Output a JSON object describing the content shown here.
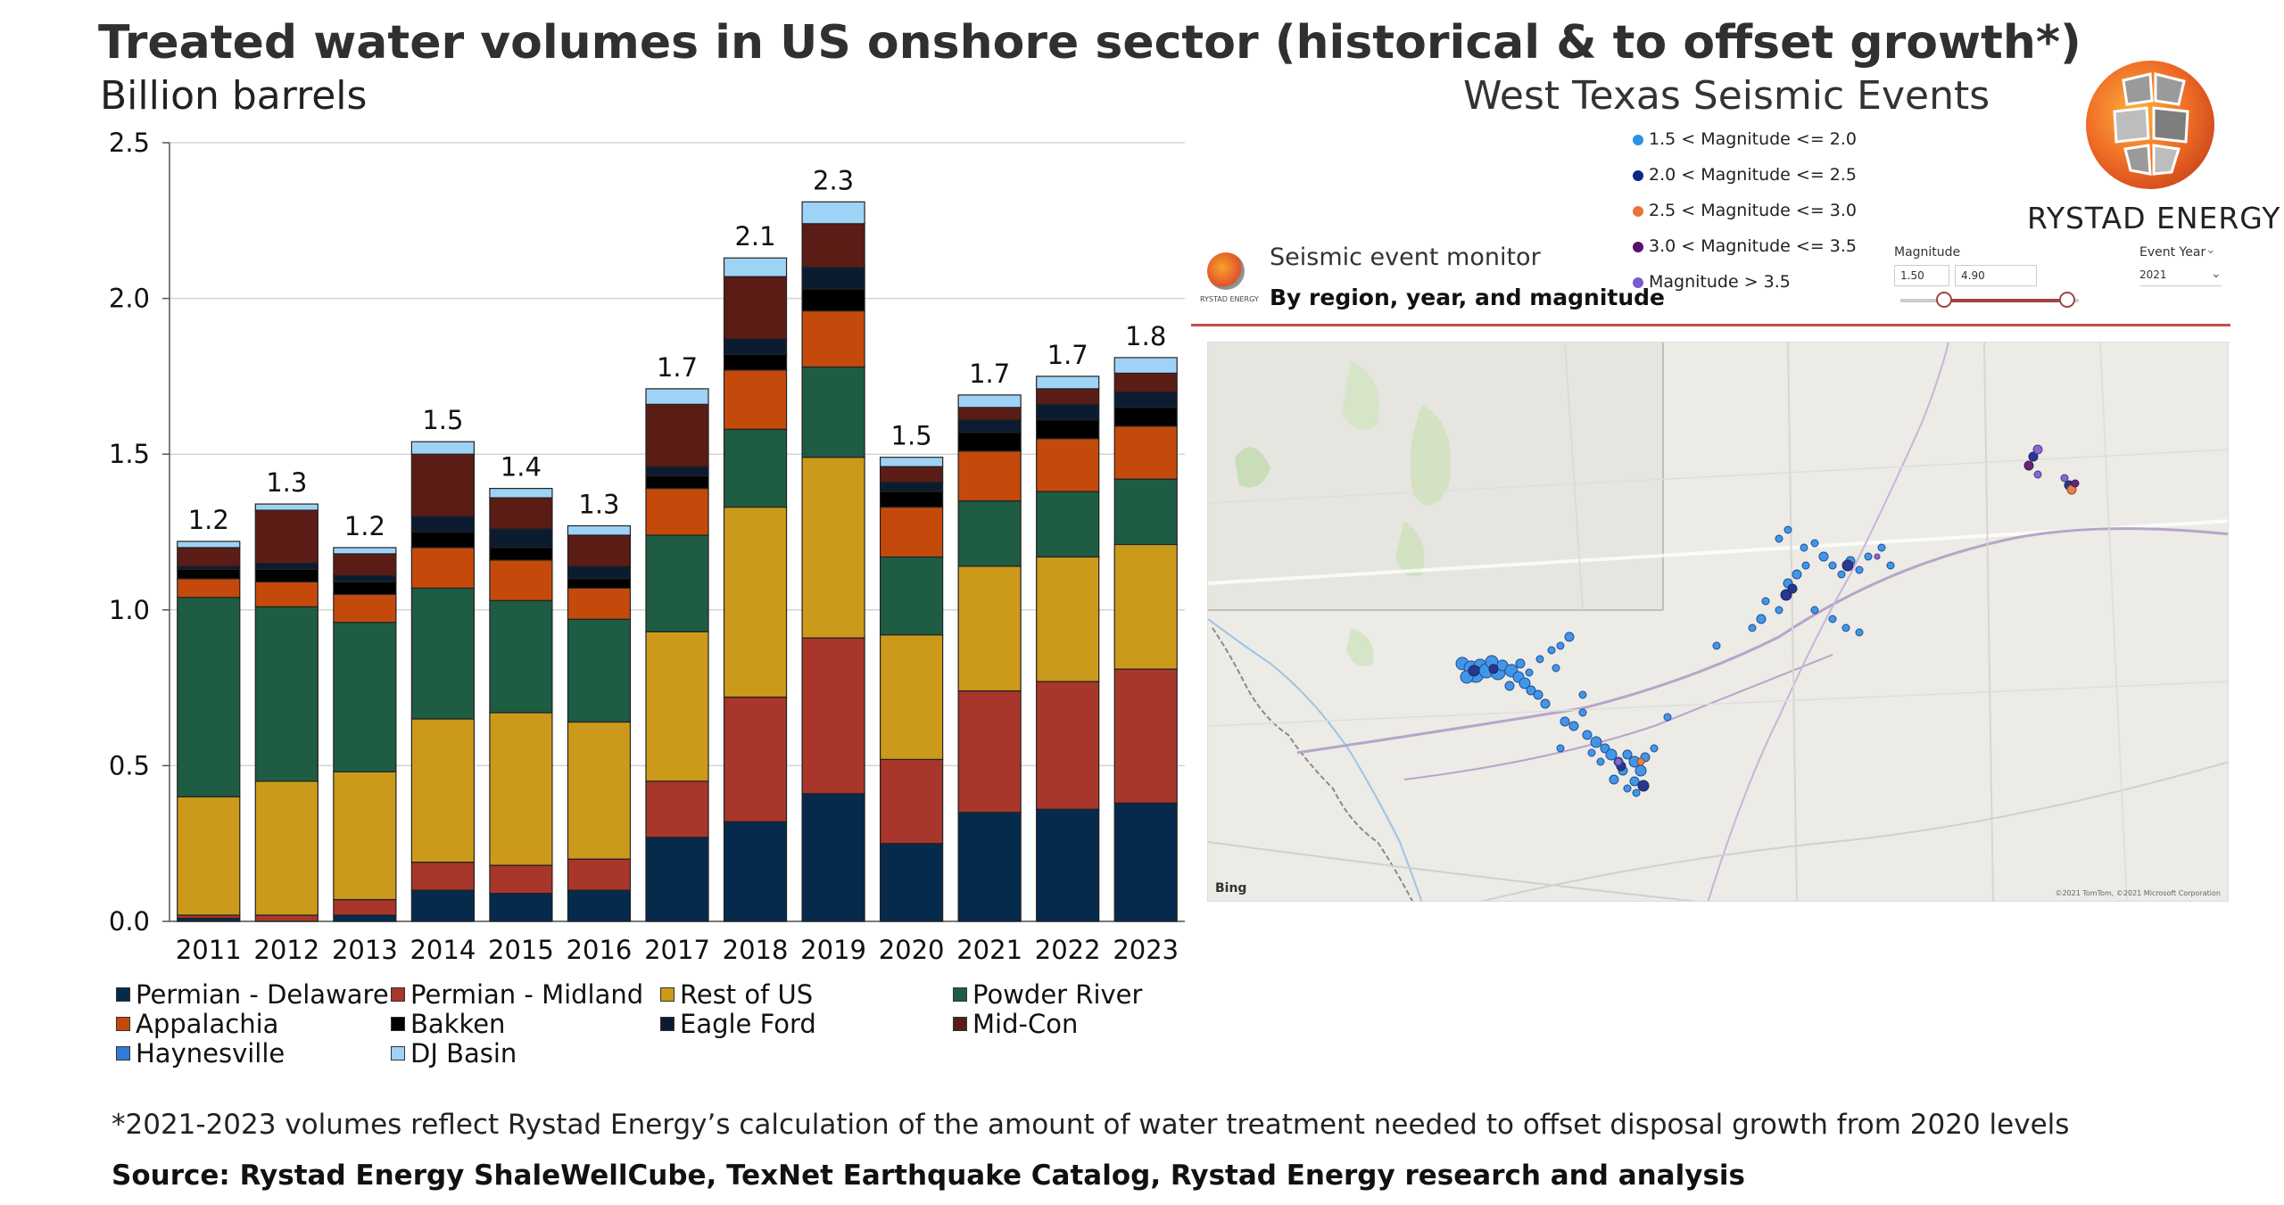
{
  "title": "Treated water volumes in US onshore sector (historical & to offset growth*)",
  "subtitle": "Billion barrels",
  "map_title": "West Texas Seismic Events",
  "footnote": "*2021-2023 volumes reflect Rystad Energy’s calculation of the amount of water treatment needed to offset disposal growth from 2020 levels",
  "source": "Source: Rystad Energy ShaleWellCube, TexNet Earthquake Catalog, Rystad Energy research and analysis",
  "logo_text": "RYSTAD ENERGY",
  "chart_data": {
    "type": "bar",
    "stacked": true,
    "title": "Treated water volumes in US onshore sector (historical & to offset growth*)",
    "ylabel": "Billion barrels",
    "ylim": [
      0,
      2.5
    ],
    "yticks": [
      "0.0",
      "0.5",
      "1.0",
      "1.5",
      "2.0",
      "2.5"
    ],
    "grid": true,
    "legend_position": "bottom",
    "categories": [
      "2011",
      "2012",
      "2013",
      "2014",
      "2015",
      "2016",
      "2017",
      "2018",
      "2019",
      "2020",
      "2021",
      "2022",
      "2023"
    ],
    "totals_labels": [
      "1.2",
      "1.3",
      "1.2",
      "1.5",
      "1.4",
      "1.3",
      "1.7",
      "2.1",
      "2.3",
      "1.5",
      "1.7",
      "1.7",
      "1.8"
    ],
    "series": [
      {
        "name": "Permian - Delaware",
        "color": "#062a4c",
        "values": [
          0.01,
          0.0,
          0.02,
          0.1,
          0.09,
          0.1,
          0.27,
          0.32,
          0.41,
          0.25,
          0.35,
          0.36,
          0.38
        ]
      },
      {
        "name": "Permian - Midland",
        "color": "#a8362a",
        "values": [
          0.01,
          0.02,
          0.05,
          0.09,
          0.09,
          0.1,
          0.18,
          0.4,
          0.5,
          0.27,
          0.39,
          0.41,
          0.43
        ]
      },
      {
        "name": "Rest of US",
        "color": "#cc9a1a",
        "values": [
          0.38,
          0.43,
          0.41,
          0.46,
          0.49,
          0.44,
          0.48,
          0.61,
          0.58,
          0.4,
          0.4,
          0.4,
          0.4
        ]
      },
      {
        "name": "Powder River",
        "color": "#1e5c44",
        "values": [
          0.64,
          0.56,
          0.48,
          0.42,
          0.36,
          0.33,
          0.31,
          0.25,
          0.29,
          0.25,
          0.21,
          0.21,
          0.21
        ]
      },
      {
        "name": "Appalachia",
        "color": "#c44a0c",
        "values": [
          0.06,
          0.08,
          0.09,
          0.13,
          0.13,
          0.1,
          0.15,
          0.19,
          0.18,
          0.16,
          0.16,
          0.17,
          0.17
        ]
      },
      {
        "name": "Bakken",
        "color": "#000000",
        "values": [
          0.03,
          0.04,
          0.04,
          0.05,
          0.04,
          0.03,
          0.04,
          0.05,
          0.07,
          0.05,
          0.06,
          0.06,
          0.06
        ]
      },
      {
        "name": "Eagle Ford",
        "color": "#0c1c30",
        "values": [
          0.01,
          0.02,
          0.02,
          0.05,
          0.06,
          0.04,
          0.03,
          0.05,
          0.07,
          0.03,
          0.04,
          0.05,
          0.05
        ]
      },
      {
        "name": "Mid-Con",
        "color": "#5c1c16",
        "values": [
          0.06,
          0.17,
          0.07,
          0.2,
          0.1,
          0.1,
          0.2,
          0.2,
          0.14,
          0.05,
          0.04,
          0.05,
          0.06
        ]
      },
      {
        "name": "Haynesville",
        "color": "#2f7ed8",
        "values": [
          0.0,
          0.0,
          0.0,
          0.0,
          0.0,
          0.0,
          0.0,
          0.0,
          0.0,
          0.0,
          0.0,
          0.0,
          0.0
        ]
      },
      {
        "name": "DJ Basin",
        "color": "#9fd3f5",
        "values": [
          0.02,
          0.02,
          0.02,
          0.04,
          0.03,
          0.03,
          0.05,
          0.06,
          0.07,
          0.03,
          0.04,
          0.04,
          0.05
        ]
      }
    ]
  },
  "seismic": {
    "monitor_title": "Seismic event monitor",
    "monitor_subtitle": "By region, year, and magnitude",
    "panel_logo_text": "RYSTAD ENERGY",
    "magnitude_label": "Magnitude",
    "magnitude_min": "1.50",
    "magnitude_max": "4.90",
    "event_year_label": "Event Year",
    "event_year_value": "2021",
    "bing_label": "Bing",
    "map_copyright": "©2021 TomTom, ©2021 Microsoft Corporation",
    "legend": [
      {
        "label": "1.5 < Magnitude <= 2.0",
        "color": "#2f8fe8"
      },
      {
        "label": "2.0 < Magnitude <= 2.5",
        "color": "#12248a"
      },
      {
        "label": "2.5 < Magnitude <= 3.0",
        "color": "#e8763a"
      },
      {
        "label": "3.0 < Magnitude <= 3.5",
        "color": "#5a0f6e"
      },
      {
        "label": "Magnitude > 3.5",
        "color": "#7a5ad0"
      }
    ],
    "icons": {
      "chevron": "chevron-down-icon",
      "logo": "rystad-logo-icon"
    }
  }
}
